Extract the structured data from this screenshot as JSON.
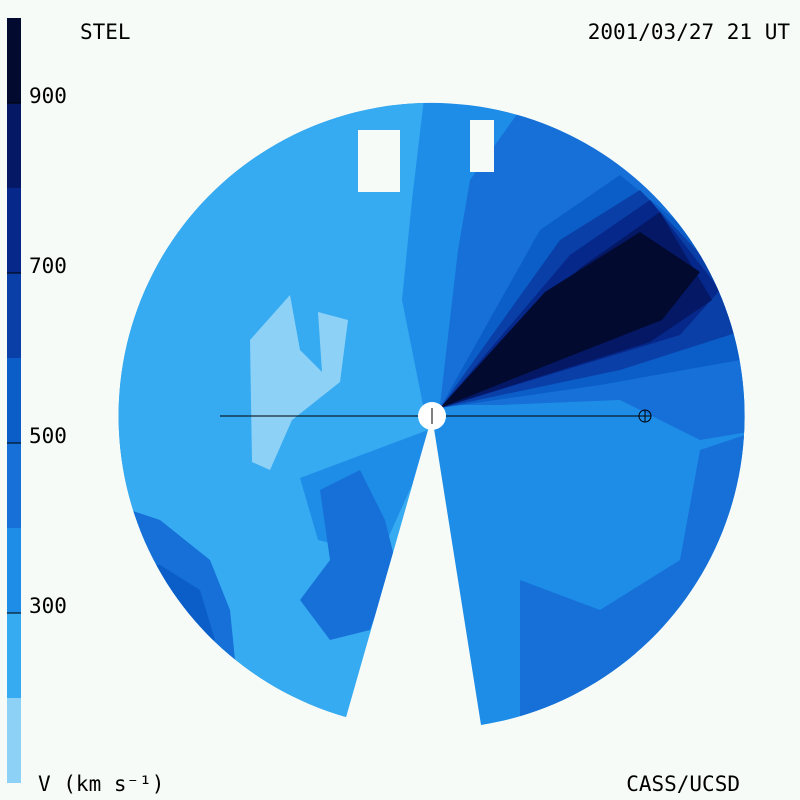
{
  "chart_data": {
    "type": "contour",
    "title": "STEL",
    "subtitle": "2001/03/27 21 UT",
    "colorbar_label": "V (km s⁻¹)",
    "credit": "CASS/UCSD",
    "clim": [
      100,
      1000
    ],
    "levels": [
      100,
      200,
      300,
      400,
      500,
      600,
      700,
      800,
      900,
      1000
    ],
    "colors": [
      "#8ed1f7",
      "#36abf1",
      "#1e8de8",
      "#1670d8",
      "#0b5ec8",
      "#0a3fa8",
      "#06288a",
      "#041866",
      "#020a30"
    ],
    "cticks": [
      300,
      500,
      700,
      900
    ]
  }
}
